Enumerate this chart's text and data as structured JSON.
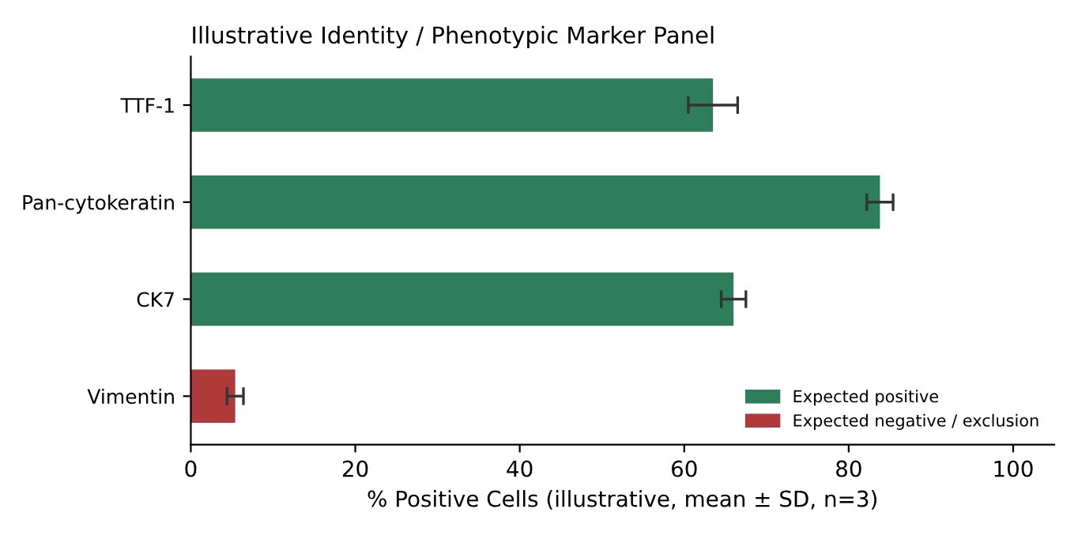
{
  "chart_data": {
    "type": "bar",
    "orientation": "horizontal",
    "title": "Illustrative Identity / Phenotypic Marker Panel",
    "xlabel": "% Positive Cells (illustrative, mean ± SD, n=3)",
    "categories": [
      "TTF-1",
      "Pan-cytokeratin",
      "CK7",
      "Vimentin"
    ],
    "series": [
      {
        "name": "Expected positive",
        "color": "#2e7d5b",
        "values": [
          63.5,
          83.8,
          66,
          null
        ],
        "errors": [
          3,
          1.6,
          1.5,
          null
        ]
      },
      {
        "name": "Expected negative / exclusion",
        "color": "#b03a3a",
        "values": [
          null,
          null,
          null,
          5.4
        ],
        "errors": [
          null,
          null,
          null,
          1
        ]
      }
    ],
    "xlim": [
      0,
      105
    ],
    "xticks": [
      0,
      20,
      40,
      60,
      80,
      100
    ],
    "grid": false,
    "legend": "bottom right"
  }
}
